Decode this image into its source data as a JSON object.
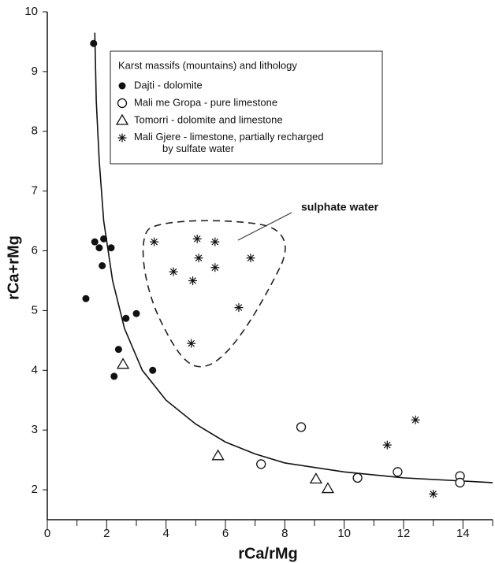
{
  "chart_data": {
    "type": "scatter",
    "xlabel": "rCa/rMg",
    "ylabel": "rCa+rMg",
    "legend_title": "Karst massifs (mountains) and lithology",
    "legend": "upper-center",
    "annotation": "sulphate water",
    "xlim": [
      0,
      15
    ],
    "ylim": [
      1.5,
      10
    ],
    "xticks": [
      0,
      2,
      4,
      6,
      8,
      10,
      12,
      14
    ],
    "xminorticks": [
      1,
      3,
      5,
      7,
      9,
      11,
      13,
      15
    ],
    "yticks": [
      2,
      3,
      4,
      5,
      6,
      7,
      8,
      9,
      10
    ],
    "series": [
      {
        "name": "Dajti - dolomite",
        "marker": "circle-filled",
        "color": "#111111",
        "x": [
          1.56,
          1.3,
          1.6,
          1.75,
          1.9,
          1.85,
          2.15,
          2.65,
          3.0,
          2.4,
          2.25,
          3.55
        ],
        "y": [
          9.47,
          5.2,
          6.15,
          6.05,
          6.2,
          5.75,
          6.05,
          4.87,
          4.95,
          4.35,
          3.9,
          4.0
        ]
      },
      {
        "name": "Mali me Gropa - pure limestone",
        "marker": "circle-open",
        "color": "#111111",
        "x": [
          8.55,
          7.2,
          10.45,
          11.8,
          13.9,
          13.9
        ],
        "y": [
          3.05,
          2.43,
          2.2,
          2.3,
          2.23,
          2.12
        ]
      },
      {
        "name": "Tomorri - dolomite and limestone",
        "marker": "triangle-open",
        "color": "#111111",
        "x": [
          2.55,
          5.75,
          9.05,
          9.45
        ],
        "y": [
          4.1,
          2.57,
          2.18,
          2.02
        ]
      },
      {
        "name": "Mali Gjere - limestone, partially recharged\nby sulfate water",
        "marker": "asterisk",
        "color": "#111111",
        "x": [
          3.6,
          5.05,
          5.65,
          4.25,
          5.1,
          4.9,
          5.65,
          6.85,
          6.45,
          4.85,
          11.45,
          12.4,
          13.0
        ],
        "y": [
          6.15,
          6.2,
          6.15,
          5.65,
          5.88,
          5.5,
          5.72,
          5.88,
          5.05,
          4.45,
          2.75,
          3.17,
          1.93
        ]
      }
    ],
    "curve": {
      "x": [
        1.6,
        1.65,
        1.75,
        1.9,
        2.2,
        2.6,
        3.2,
        4,
        5,
        6,
        7,
        8,
        10,
        12,
        15
      ],
      "y": [
        9.65,
        8.5,
        7.5,
        6.5,
        5.5,
        4.7,
        4.0,
        3.5,
        3.1,
        2.8,
        2.6,
        2.45,
        2.3,
        2.2,
        2.12
      ]
    }
  }
}
